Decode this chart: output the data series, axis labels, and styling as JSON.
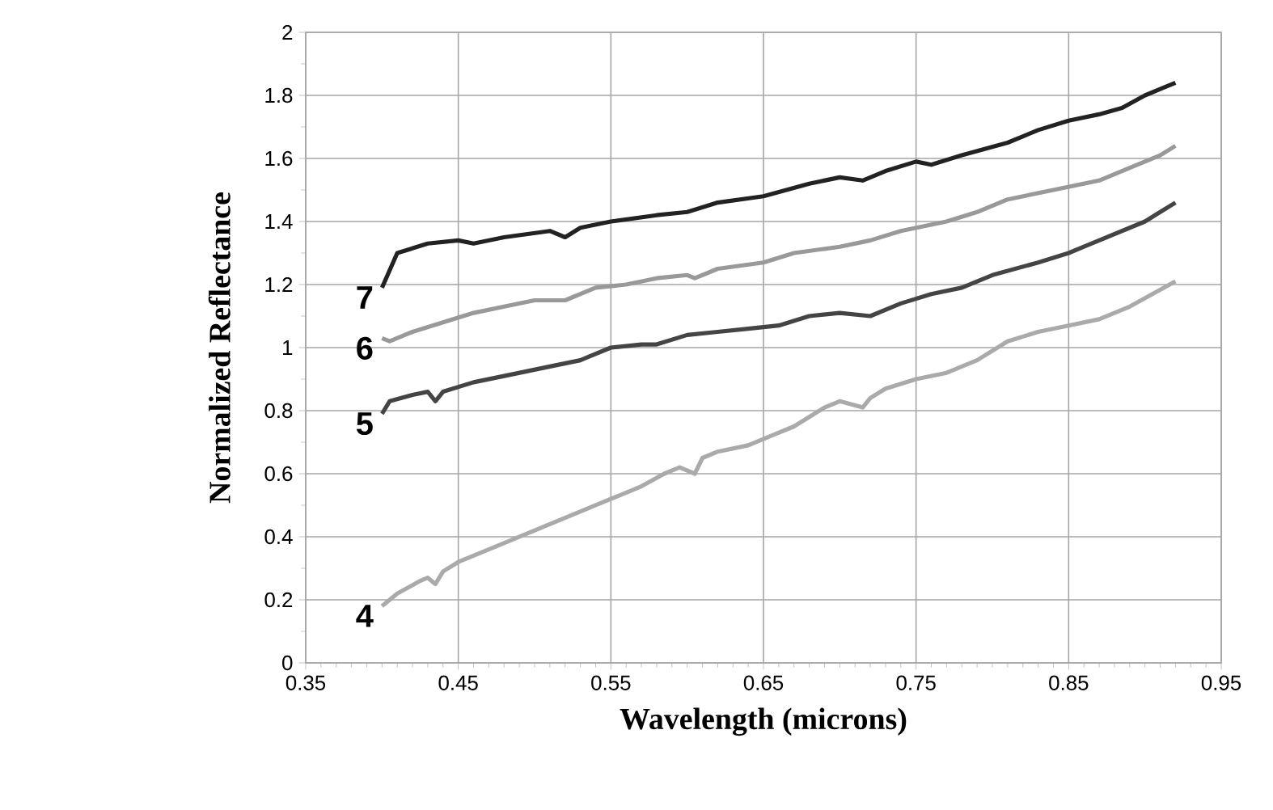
{
  "chart_data": {
    "type": "line",
    "xlabel": "Wavelength (microns)",
    "ylabel": "Normalized Reflectance",
    "xlim": [
      0.35,
      0.95
    ],
    "ylim": [
      0,
      2
    ],
    "xticks": [
      0.35,
      0.45,
      0.55,
      0.65,
      0.75,
      0.85,
      0.95
    ],
    "yticks": [
      0,
      0.2,
      0.4,
      0.6,
      0.8,
      1,
      1.2,
      1.4,
      1.6,
      1.8,
      2
    ],
    "grid": true,
    "series": [
      {
        "name": "7",
        "color": "#222222",
        "x": [
          0.4,
          0.41,
          0.43,
          0.45,
          0.46,
          0.48,
          0.51,
          0.52,
          0.53,
          0.55,
          0.58,
          0.6,
          0.62,
          0.65,
          0.68,
          0.7,
          0.715,
          0.73,
          0.75,
          0.76,
          0.78,
          0.81,
          0.83,
          0.85,
          0.87,
          0.885,
          0.9,
          0.91,
          0.92
        ],
        "values": [
          1.19,
          1.3,
          1.33,
          1.34,
          1.33,
          1.35,
          1.37,
          1.35,
          1.38,
          1.4,
          1.42,
          1.43,
          1.46,
          1.48,
          1.52,
          1.54,
          1.53,
          1.56,
          1.59,
          1.58,
          1.61,
          1.65,
          1.69,
          1.72,
          1.74,
          1.76,
          1.8,
          1.82,
          1.84
        ]
      },
      {
        "name": "6",
        "color": "#999999",
        "x": [
          0.4,
          0.405,
          0.42,
          0.44,
          0.46,
          0.48,
          0.5,
          0.52,
          0.54,
          0.56,
          0.58,
          0.6,
          0.605,
          0.62,
          0.65,
          0.67,
          0.7,
          0.72,
          0.74,
          0.77,
          0.79,
          0.81,
          0.84,
          0.86,
          0.87,
          0.89,
          0.91,
          0.92
        ],
        "values": [
          1.03,
          1.02,
          1.05,
          1.08,
          1.11,
          1.13,
          1.15,
          1.15,
          1.19,
          1.2,
          1.22,
          1.23,
          1.22,
          1.25,
          1.27,
          1.3,
          1.32,
          1.34,
          1.37,
          1.4,
          1.43,
          1.47,
          1.5,
          1.52,
          1.53,
          1.57,
          1.61,
          1.64
        ]
      },
      {
        "name": "5",
        "color": "#444444",
        "x": [
          0.4,
          0.405,
          0.42,
          0.43,
          0.435,
          0.44,
          0.46,
          0.48,
          0.51,
          0.53,
          0.535,
          0.55,
          0.57,
          0.58,
          0.6,
          0.62,
          0.64,
          0.66,
          0.68,
          0.7,
          0.72,
          0.74,
          0.76,
          0.78,
          0.8,
          0.83,
          0.85,
          0.86,
          0.88,
          0.9,
          0.91,
          0.92
        ],
        "values": [
          0.79,
          0.83,
          0.85,
          0.86,
          0.83,
          0.86,
          0.89,
          0.91,
          0.94,
          0.96,
          0.97,
          1.0,
          1.01,
          1.01,
          1.04,
          1.05,
          1.06,
          1.07,
          1.1,
          1.11,
          1.1,
          1.14,
          1.17,
          1.19,
          1.23,
          1.27,
          1.3,
          1.32,
          1.36,
          1.4,
          1.43,
          1.46
        ]
      },
      {
        "name": "4",
        "color": "#aaaaaa",
        "x": [
          0.4,
          0.41,
          0.425,
          0.43,
          0.435,
          0.44,
          0.45,
          0.47,
          0.49,
          0.51,
          0.53,
          0.55,
          0.57,
          0.585,
          0.595,
          0.605,
          0.61,
          0.62,
          0.64,
          0.655,
          0.67,
          0.68,
          0.69,
          0.7,
          0.715,
          0.72,
          0.73,
          0.75,
          0.77,
          0.79,
          0.81,
          0.83,
          0.85,
          0.87,
          0.89,
          0.905,
          0.92
        ],
        "values": [
          0.18,
          0.22,
          0.26,
          0.27,
          0.25,
          0.29,
          0.32,
          0.36,
          0.4,
          0.44,
          0.48,
          0.52,
          0.56,
          0.6,
          0.62,
          0.6,
          0.65,
          0.67,
          0.69,
          0.72,
          0.75,
          0.78,
          0.81,
          0.83,
          0.81,
          0.84,
          0.87,
          0.9,
          0.92,
          0.96,
          1.02,
          1.05,
          1.07,
          1.09,
          1.13,
          1.17,
          1.21
        ]
      }
    ]
  }
}
